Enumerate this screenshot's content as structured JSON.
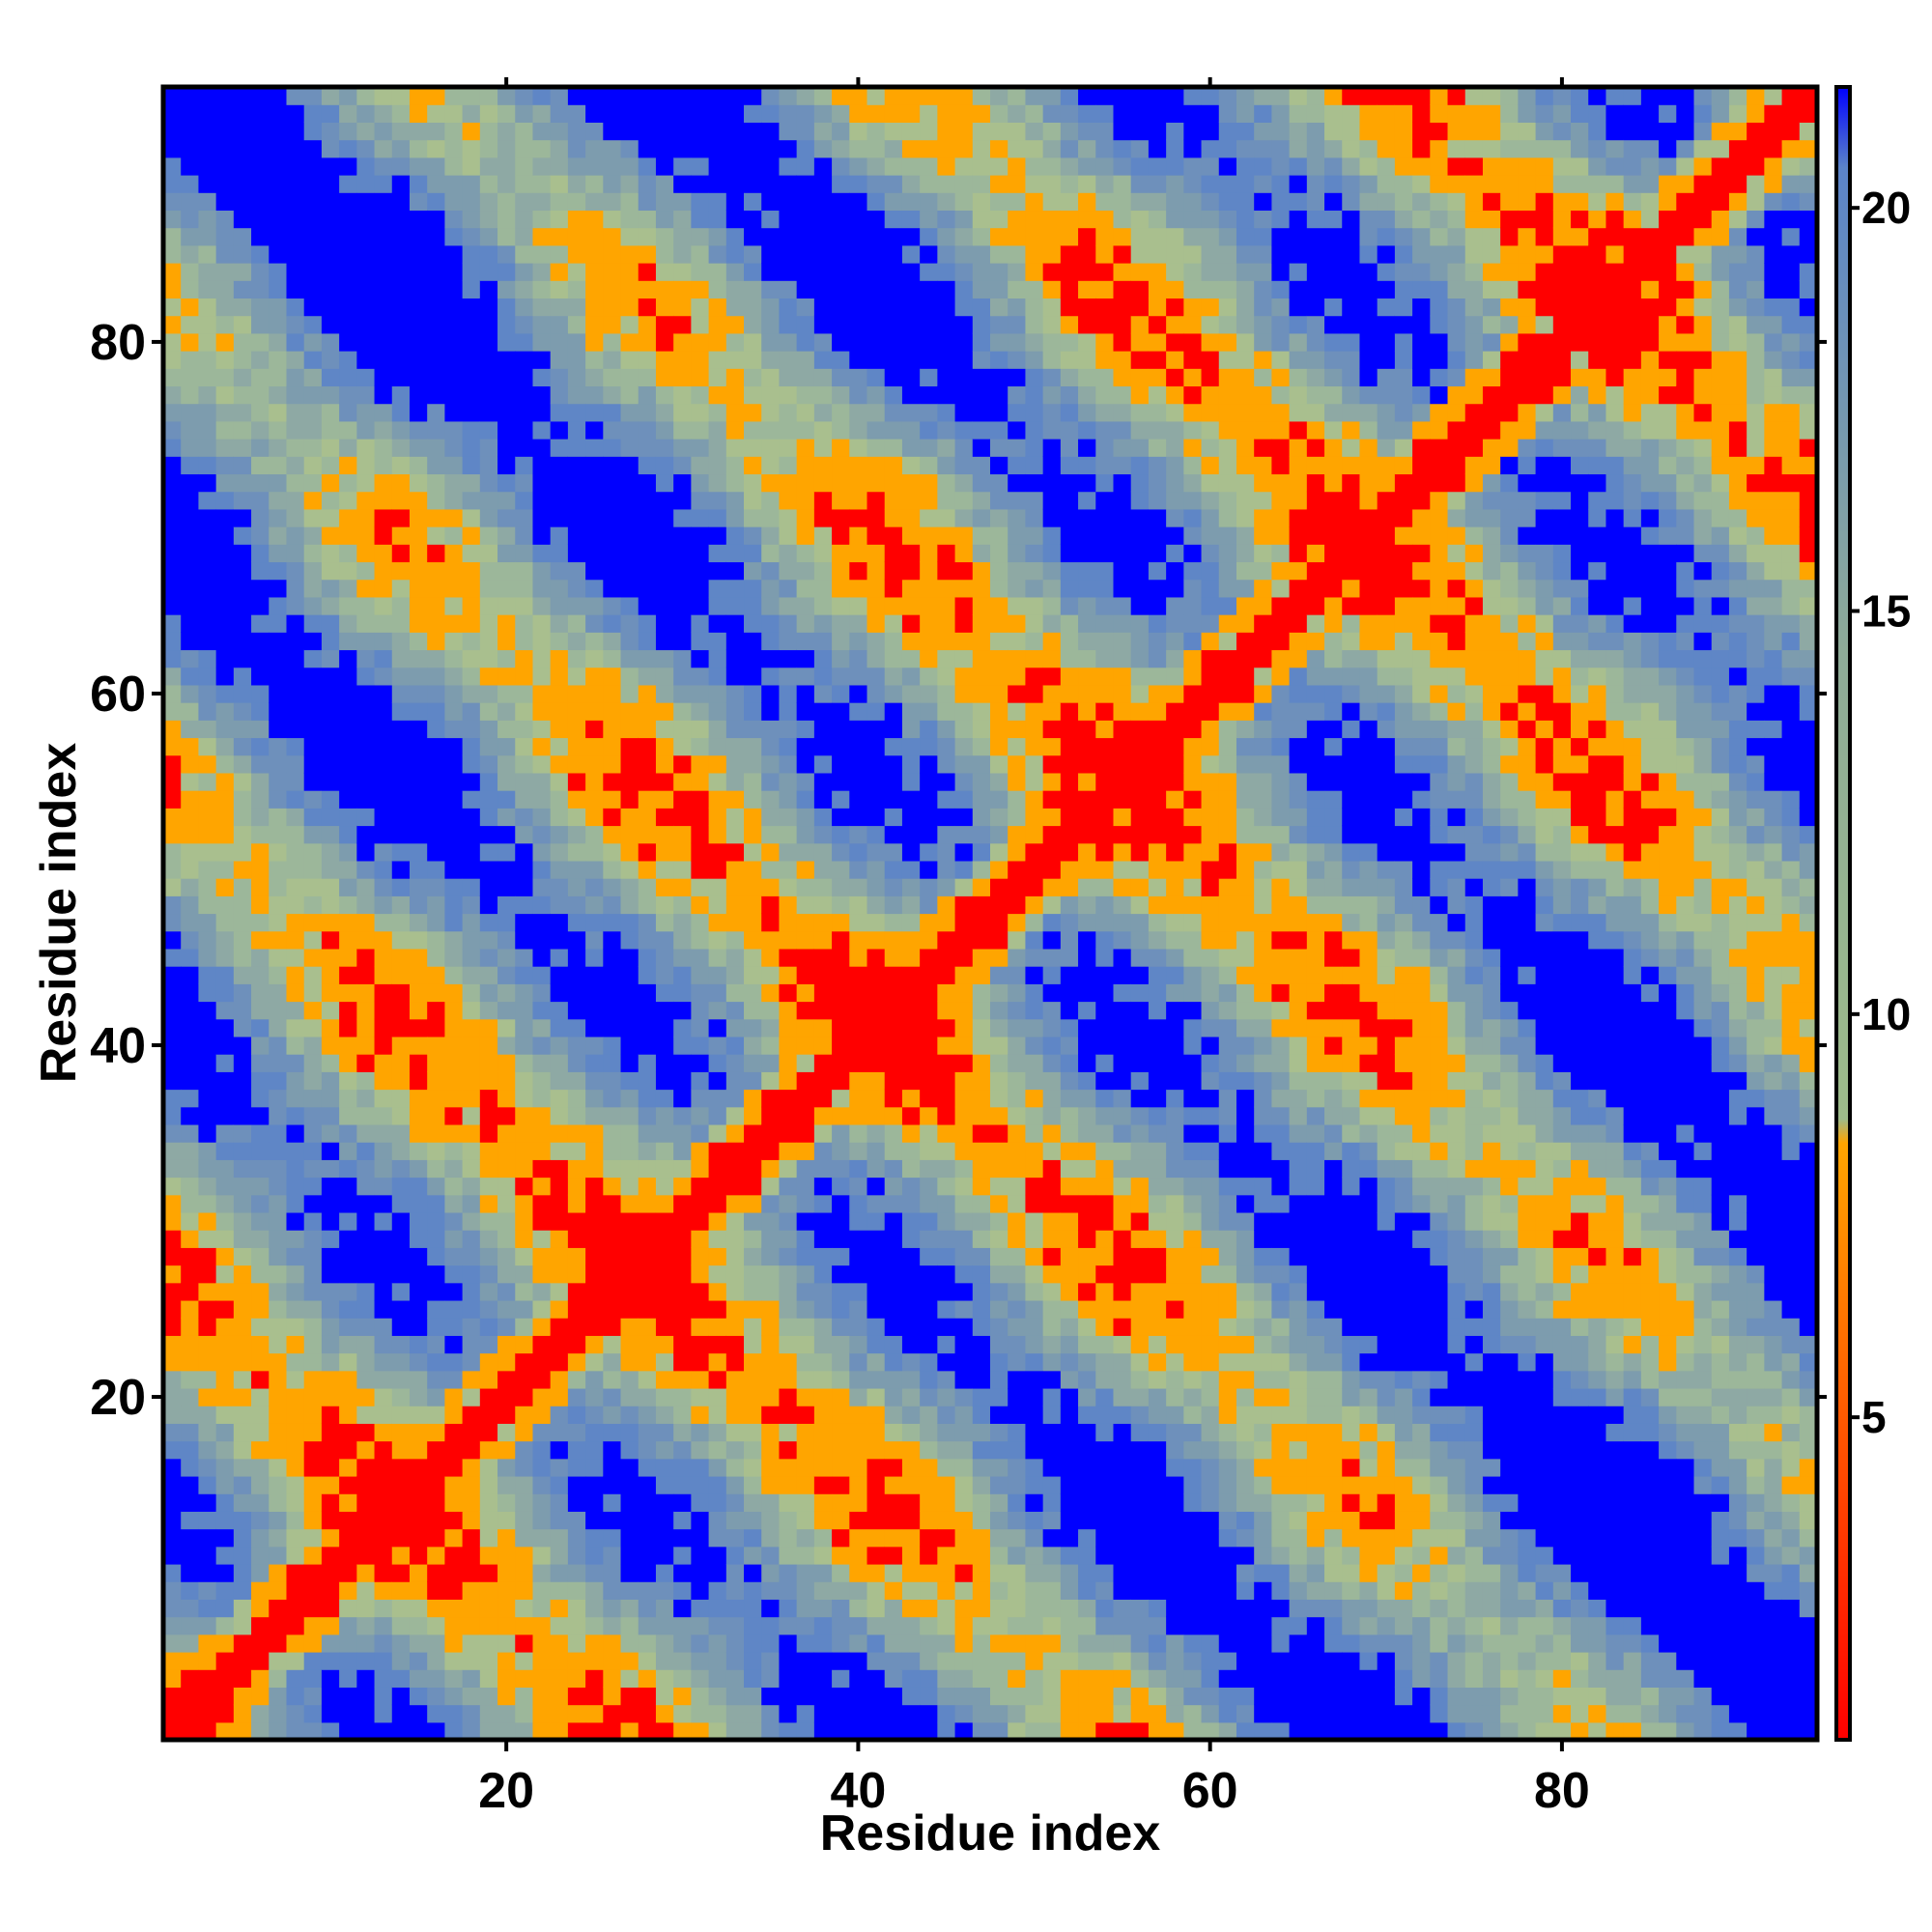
{
  "chart_data": {
    "type": "heatmap",
    "title": "",
    "xlabel": "Residue index",
    "ylabel": "Residue index",
    "xlim": [
      0.5,
      94.5
    ],
    "ylim": [
      0.5,
      94.5
    ],
    "x_ticks": [
      20,
      40,
      60,
      80
    ],
    "y_ticks": [
      20,
      40,
      60,
      80
    ],
    "colorbar": {
      "range": [
        1,
        21.5
      ],
      "ticks": [
        5,
        10,
        15,
        20
      ],
      "colors": [
        {
          "value": 1,
          "color": "#ff0000"
        },
        {
          "value": 8.4,
          "color": "#ffa500"
        },
        {
          "value": 8.7,
          "color": "#9dbb8a"
        },
        {
          "value": 14.5,
          "color": "#8eab98"
        },
        {
          "value": 20.5,
          "color": "#5b84c9"
        },
        {
          "value": 21.5,
          "color": "#0000ff"
        }
      ]
    },
    "matrix_size": 94,
    "matrix_note_color_above_cutoff": "#0000ff",
    "color_bins": [
      {
        "max": 5,
        "color": "#ff0000"
      },
      {
        "max": 8.5,
        "color": "#ffa500"
      },
      {
        "max": 10,
        "color": "#a9bf8e"
      },
      {
        "max": 12,
        "color": "#9cb79a"
      },
      {
        "max": 14,
        "color": "#8ea9a4"
      },
      {
        "max": 16,
        "color": "#7d9cae"
      },
      {
        "max": 18,
        "color": "#6e90bb"
      },
      {
        "max": 20,
        "color": "#5f86c6"
      },
      {
        "max": 999,
        "color": "#0000ff"
      }
    ]
  }
}
